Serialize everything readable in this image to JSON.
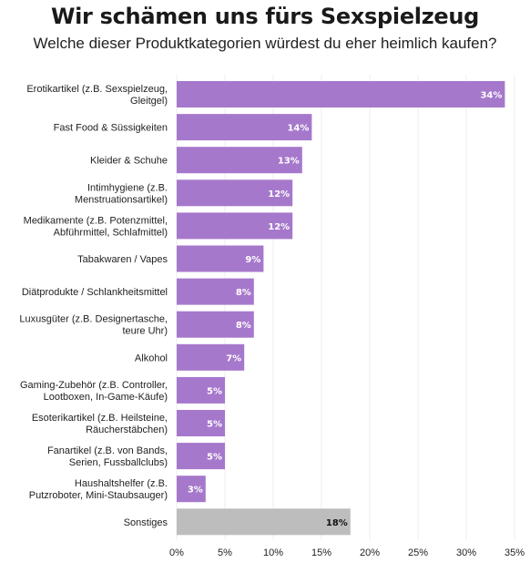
{
  "title": "Wir schämen uns fürs Sexspielzeug",
  "subtitle": "Welche dieser Produktkategorien würdest du eher heimlich kaufen?",
  "chart_data": {
    "type": "bar",
    "orientation": "horizontal",
    "title": "Wir schämen uns fürs Sexspielzeug",
    "subtitle": "Welche dieser Produktkategorien würdest du eher heimlich kaufen?",
    "categories": [
      [
        "Erotikartikel (z.B. Sexspielzeug,",
        "Gleitgel)"
      ],
      [
        "Fast Food & Süssigkeiten"
      ],
      [
        "Kleider & Schuhe"
      ],
      [
        "Intimhygiene (z.B.",
        "Menstruationsartikel)"
      ],
      [
        "Medikamente (z.B. Potenzmittel,",
        "Abführmittel, Schlafmittel)"
      ],
      [
        "Tabakwaren / Vapes"
      ],
      [
        "Diätprodukte / Schlankheitsmittel"
      ],
      [
        "Luxusgüter (z.B. Designertasche,",
        "teure Uhr)"
      ],
      [
        "Alkohol"
      ],
      [
        "Gaming-Zubehör (z.B. Controller,",
        "Lootboxen, In-Game-Käufe)"
      ],
      [
        "Esoterikartikel (z.B. Heilsteine,",
        "Räucherstäbchen)"
      ],
      [
        "Fanartikel (z.B. von Bands,",
        "Serien, Fussballclubs)"
      ],
      [
        "Haushaltshelfer (z.B.",
        "Putzroboter, Mini-Staubsauger)"
      ],
      [
        "Sonstiges"
      ]
    ],
    "values": [
      34,
      14,
      13,
      12,
      12,
      9,
      8,
      8,
      7,
      5,
      5,
      5,
      3,
      18
    ],
    "value_labels": [
      "34%",
      "14%",
      "13%",
      "12%",
      "12%",
      "9%",
      "8%",
      "8%",
      "7%",
      "5%",
      "5%",
      "5%",
      "3%",
      "18%"
    ],
    "bar_colors": [
      "#a678cc",
      "#a678cc",
      "#a678cc",
      "#a678cc",
      "#a678cc",
      "#a678cc",
      "#a678cc",
      "#a678cc",
      "#a678cc",
      "#a678cc",
      "#a678cc",
      "#a678cc",
      "#a678cc",
      "#bdbdbd"
    ],
    "label_colors": [
      "#ffffff",
      "#ffffff",
      "#ffffff",
      "#ffffff",
      "#ffffff",
      "#ffffff",
      "#ffffff",
      "#ffffff",
      "#ffffff",
      "#ffffff",
      "#ffffff",
      "#ffffff",
      "#ffffff",
      "#111111"
    ],
    "xlim": [
      0,
      35
    ],
    "xticks": [
      0,
      5,
      10,
      15,
      20,
      25,
      30,
      35
    ],
    "xtick_labels": [
      "0%",
      "5%",
      "10%",
      "15%",
      "20%",
      "25%",
      "30%",
      "35%"
    ],
    "xlabel": "",
    "ylabel": "",
    "grid": true,
    "legend": "none"
  },
  "colors": {
    "accent": "#a678cc",
    "other": "#bdbdbd",
    "grid": "#ececec"
  }
}
